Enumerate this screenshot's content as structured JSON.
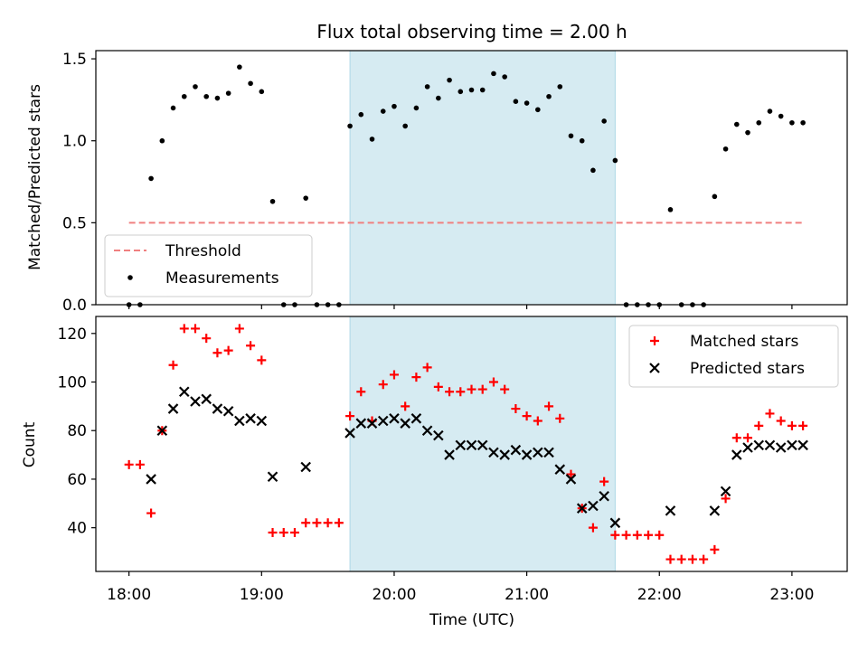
{
  "title": "Flux total observing time = 2.00 h",
  "colors": {
    "shade": "#add8e6",
    "threshold": "#f08080",
    "measurement": "#000000",
    "matched": "#ff0000",
    "predicted": "#000000"
  },
  "chart_data": [
    {
      "type": "scatter",
      "ylabel": "Matched/Predicted stars",
      "xlabel": "",
      "ylim": [
        0,
        1.55
      ],
      "yticks": [
        "0.0",
        "0.5",
        "1.0",
        "1.5"
      ],
      "ytick_values": [
        0,
        0.5,
        1.0,
        1.5
      ],
      "legend": {
        "placement": "lower-left",
        "entries": [
          "Threshold",
          "Measurements"
        ]
      },
      "shaded_span": {
        "from": "19:40",
        "to": "21:40"
      },
      "threshold": {
        "name": "Threshold",
        "value": 0.5,
        "from": "18:00",
        "to": "23:05",
        "style": "dashed"
      },
      "series": [
        {
          "name": "Measurements",
          "x": [
            "18:00",
            "18:05",
            "18:10",
            "18:15",
            "18:20",
            "18:25",
            "18:30",
            "18:35",
            "18:40",
            "18:45",
            "18:50",
            "18:55",
            "19:00",
            "19:05",
            "19:10",
            "19:15",
            "19:20",
            "19:25",
            "19:30",
            "19:35",
            "19:40",
            "19:45",
            "19:50",
            "19:55",
            "20:00",
            "20:05",
            "20:10",
            "20:15",
            "20:20",
            "20:25",
            "20:30",
            "20:35",
            "20:40",
            "20:45",
            "20:50",
            "20:55",
            "21:00",
            "21:05",
            "21:10",
            "21:15",
            "21:20",
            "21:25",
            "21:30",
            "21:35",
            "21:40",
            "21:45",
            "21:50",
            "21:55",
            "22:00",
            "22:05",
            "22:10",
            "22:15",
            "22:20",
            "22:25",
            "22:30",
            "22:35",
            "22:40",
            "22:45",
            "22:50",
            "22:55",
            "23:00",
            "23:05"
          ],
          "y": [
            0.0,
            0.0,
            0.77,
            1.0,
            1.2,
            1.27,
            1.33,
            1.27,
            1.26,
            1.29,
            1.45,
            1.35,
            1.3,
            0.63,
            0.0,
            0.0,
            0.65,
            0.0,
            0.0,
            0.0,
            1.09,
            1.16,
            1.01,
            1.18,
            1.21,
            1.09,
            1.2,
            1.33,
            1.26,
            1.37,
            1.3,
            1.31,
            1.31,
            1.41,
            1.39,
            1.24,
            1.23,
            1.19,
            1.27,
            1.33,
            1.03,
            1.0,
            0.82,
            1.12,
            0.88,
            0.0,
            0.0,
            0.0,
            0.0,
            0.58,
            0.0,
            0.0,
            0.0,
            0.66,
            0.95,
            1.1,
            1.05,
            1.11,
            1.18,
            1.15,
            1.11,
            1.11
          ]
        }
      ]
    },
    {
      "type": "scatter",
      "ylabel": "Count",
      "xlabel": "Time (UTC)",
      "ylim": [
        22,
        127
      ],
      "yticks": [
        "40",
        "60",
        "80",
        "100",
        "120"
      ],
      "ytick_values": [
        40,
        60,
        80,
        100,
        120
      ],
      "xlim": [
        "17:45",
        "23:25"
      ],
      "xticks": [
        "18:00",
        "19:00",
        "20:00",
        "21:00",
        "22:00",
        "23:00"
      ],
      "legend": {
        "placement": "top-right",
        "entries": [
          "Matched stars",
          "Predicted stars"
        ]
      },
      "shaded_span": {
        "from": "19:40",
        "to": "21:40"
      },
      "series": [
        {
          "name": "Matched stars",
          "marker": "plus",
          "x": [
            "18:00",
            "18:05",
            "18:10",
            "18:15",
            "18:20",
            "18:25",
            "18:30",
            "18:35",
            "18:40",
            "18:45",
            "18:50",
            "18:55",
            "19:00",
            "19:05",
            "19:10",
            "19:15",
            "19:20",
            "19:25",
            "19:30",
            "19:35",
            "19:40",
            "19:45",
            "19:50",
            "19:55",
            "20:00",
            "20:05",
            "20:10",
            "20:15",
            "20:20",
            "20:25",
            "20:30",
            "20:35",
            "20:40",
            "20:45",
            "20:50",
            "20:55",
            "21:00",
            "21:05",
            "21:10",
            "21:15",
            "21:20",
            "21:25",
            "21:30",
            "21:35",
            "21:40",
            "21:45",
            "21:50",
            "21:55",
            "22:00",
            "22:05",
            "22:10",
            "22:15",
            "22:20",
            "22:25",
            "22:30",
            "22:35",
            "22:40",
            "22:45",
            "22:50",
            "22:55",
            "23:00",
            "23:05"
          ],
          "y": [
            66,
            66,
            46,
            80,
            107,
            122,
            122,
            118,
            112,
            113,
            122,
            115,
            109,
            38,
            38,
            38,
            42,
            42,
            42,
            42,
            86,
            96,
            84,
            99,
            103,
            90,
            102,
            106,
            98,
            96,
            96,
            97,
            97,
            100,
            97,
            89,
            86,
            84,
            90,
            85,
            62,
            48,
            40,
            59,
            37,
            37,
            37,
            37,
            37,
            27,
            27,
            27,
            27,
            31,
            52,
            77,
            77,
            82,
            87,
            84,
            82,
            82
          ]
        },
        {
          "name": "Predicted stars",
          "marker": "cross",
          "x": [
            "18:10",
            "18:15",
            "18:20",
            "18:25",
            "18:30",
            "18:35",
            "18:40",
            "18:45",
            "18:50",
            "18:55",
            "19:00",
            "19:05",
            "19:20",
            "19:40",
            "19:45",
            "19:50",
            "19:55",
            "20:00",
            "20:05",
            "20:10",
            "20:15",
            "20:20",
            "20:25",
            "20:30",
            "20:35",
            "20:40",
            "20:45",
            "20:50",
            "20:55",
            "21:00",
            "21:05",
            "21:10",
            "21:15",
            "21:20",
            "21:25",
            "21:30",
            "21:35",
            "21:40",
            "22:05",
            "22:25",
            "22:30",
            "22:35",
            "22:40",
            "22:45",
            "22:50",
            "22:55",
            "23:00",
            "23:05"
          ],
          "y": [
            60,
            80,
            89,
            96,
            92,
            93,
            89,
            88,
            84,
            85,
            84,
            61,
            65,
            79,
            83,
            83,
            84,
            85,
            83,
            85,
            80,
            78,
            70,
            74,
            74,
            74,
            71,
            70,
            72,
            70,
            71,
            71,
            64,
            60,
            48,
            49,
            53,
            42,
            47,
            47,
            55,
            70,
            73,
            74,
            74,
            73,
            74,
            74
          ]
        }
      ]
    }
  ]
}
